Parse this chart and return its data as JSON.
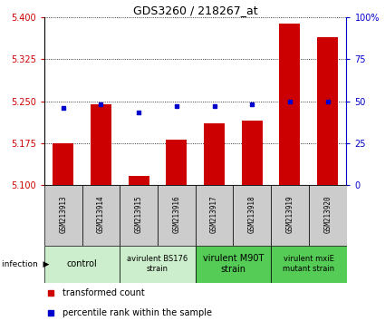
{
  "title": "GDS3260 / 218267_at",
  "samples": [
    "GSM213913",
    "GSM213914",
    "GSM213915",
    "GSM213916",
    "GSM213917",
    "GSM213918",
    "GSM213919",
    "GSM213920"
  ],
  "transformed_counts": [
    5.175,
    5.245,
    5.115,
    5.18,
    5.21,
    5.215,
    5.39,
    5.365
  ],
  "percentile_ranks": [
    46,
    48,
    43,
    47,
    47,
    48,
    50,
    50
  ],
  "ylim_left": [
    5.1,
    5.4
  ],
  "yticks_left": [
    5.1,
    5.175,
    5.25,
    5.325,
    5.4
  ],
  "ylim_right": [
    0,
    100
  ],
  "yticks_right": [
    0,
    25,
    50,
    75,
    100
  ],
  "yticklabels_right": [
    "0",
    "25",
    "50",
    "75",
    "100%"
  ],
  "bar_color": "#cc0000",
  "dot_color": "#0000cc",
  "left_tick_color": "#cc0000",
  "right_tick_color": "#0000cc",
  "bar_width": 0.55,
  "group_configs": [
    {
      "xstart": 0,
      "xend": 2,
      "label": "control",
      "color": "#cceecc",
      "fontsize": 7
    },
    {
      "xstart": 2,
      "xend": 4,
      "label": "avirulent BS176\nstrain",
      "color": "#cceecc",
      "fontsize": 6
    },
    {
      "xstart": 4,
      "xend": 6,
      "label": "virulent M90T\nstrain",
      "color": "#55cc55",
      "fontsize": 7
    },
    {
      "xstart": 6,
      "xend": 8,
      "label": "virulent mxiE\nmutant strain",
      "color": "#55cc55",
      "fontsize": 6
    }
  ],
  "sample_box_color": "#cccccc",
  "infection_label": "infection",
  "legend_items": [
    {
      "label": "transformed count",
      "color": "#cc0000"
    },
    {
      "label": "percentile rank within the sample",
      "color": "#0000cc"
    }
  ]
}
